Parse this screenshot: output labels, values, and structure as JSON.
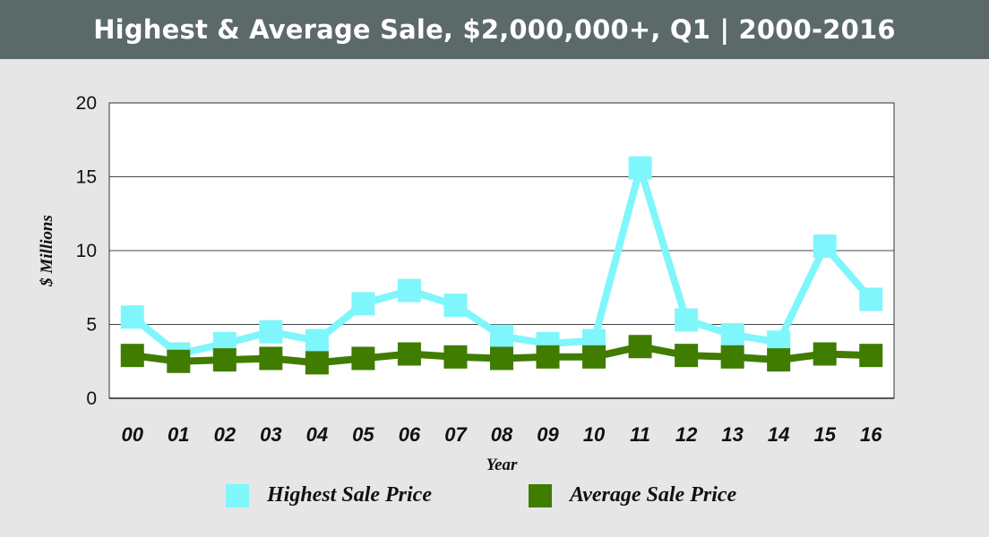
{
  "title": "Highest & Average Sale, $2,000,000+, Q1 | 2000-2016",
  "colors": {
    "header_bg": "#5b6a69",
    "page_bg": "#e6e6e6",
    "plot_bg": "#ffffff",
    "highest": "#7ff6fc",
    "average": "#3f7c00"
  },
  "chart_data": {
    "type": "line",
    "title": "Highest & Average Sale, $2,000,000+, Q1 | 2000-2016",
    "xlabel": "Year",
    "ylabel": "$ Millions",
    "ylim": [
      0,
      20
    ],
    "yticks": [
      0,
      5,
      10,
      15,
      20
    ],
    "grid": true,
    "legend_position": "bottom",
    "categories": [
      "00",
      "01",
      "02",
      "03",
      "04",
      "05",
      "06",
      "07",
      "08",
      "09",
      "10",
      "11",
      "12",
      "13",
      "14",
      "15",
      "16"
    ],
    "series": [
      {
        "name": "Highest Sale Price",
        "color": "#7ff6fc",
        "marker": "square",
        "values": [
          5.5,
          3.0,
          3.7,
          4.5,
          3.9,
          6.4,
          7.3,
          6.3,
          4.2,
          3.7,
          3.9,
          15.6,
          5.3,
          4.3,
          3.8,
          10.3,
          6.7
        ]
      },
      {
        "name": "Average Sale Price",
        "color": "#3f7c00",
        "marker": "square",
        "values": [
          2.9,
          2.5,
          2.6,
          2.7,
          2.4,
          2.7,
          3.0,
          2.8,
          2.7,
          2.8,
          2.8,
          3.5,
          2.9,
          2.8,
          2.6,
          3.0,
          2.9
        ]
      }
    ]
  }
}
